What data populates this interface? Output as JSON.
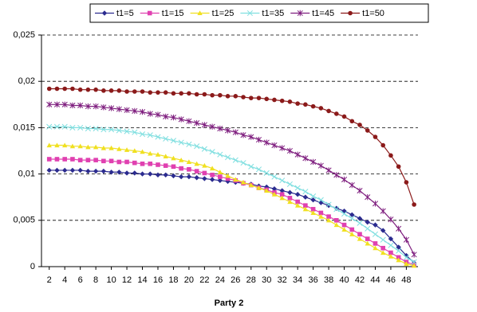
{
  "chart_data": {
    "type": "line",
    "x_label": "Party 2",
    "x": [
      2,
      3,
      4,
      5,
      6,
      7,
      8,
      9,
      10,
      11,
      12,
      13,
      14,
      15,
      16,
      17,
      18,
      19,
      20,
      21,
      22,
      23,
      24,
      25,
      26,
      27,
      28,
      29,
      30,
      31,
      32,
      33,
      34,
      35,
      36,
      37,
      38,
      39,
      40,
      41,
      42,
      43,
      44,
      45,
      46,
      47,
      48,
      49
    ],
    "xlim": [
      1,
      49.5
    ],
    "xticks": [
      2,
      4,
      6,
      8,
      10,
      12,
      14,
      16,
      18,
      20,
      22,
      24,
      26,
      28,
      30,
      32,
      34,
      36,
      38,
      40,
      42,
      44,
      46,
      48
    ],
    "ylim": [
      0,
      0.025
    ],
    "yticks": [
      0,
      {
        "value": 0.005,
        "label": "0,005"
      },
      {
        "value": 0.01,
        "label": "0,01"
      },
      {
        "value": 0.015,
        "label": "0,015"
      },
      {
        "value": 0.02,
        "label": "0,02"
      },
      {
        "value": 0.025,
        "label": "0,025"
      }
    ],
    "grid": true,
    "legend": "top",
    "series": [
      {
        "name": "t1=5",
        "color": "#2b2b8f",
        "marker": "diamond",
        "values": [
          0.0104,
          0.0104,
          0.0104,
          0.0104,
          0.0104,
          0.0103,
          0.0103,
          0.0103,
          0.0102,
          0.0102,
          0.0101,
          0.0101,
          0.01,
          0.01,
          0.0099,
          0.0099,
          0.0098,
          0.0097,
          0.0097,
          0.0096,
          0.0095,
          0.0094,
          0.0093,
          0.0092,
          0.0091,
          0.009,
          0.0089,
          0.0087,
          0.0086,
          0.0084,
          0.0082,
          0.008,
          0.0078,
          0.0075,
          0.0072,
          0.0069,
          0.0066,
          0.0063,
          0.006,
          0.0056,
          0.0052,
          0.0048,
          0.0045,
          0.0039,
          0.003,
          0.0021,
          0.0012,
          0.0004
        ]
      },
      {
        "name": "t1=15",
        "color": "#e040b0",
        "marker": "square",
        "values": [
          0.0116,
          0.0116,
          0.0116,
          0.0116,
          0.0115,
          0.0115,
          0.0115,
          0.0114,
          0.0114,
          0.0113,
          0.0113,
          0.0112,
          0.0111,
          0.0111,
          0.011,
          0.0109,
          0.0108,
          0.0106,
          0.0105,
          0.0103,
          0.0101,
          0.0099,
          0.0097,
          0.0095,
          0.0093,
          0.009,
          0.0088,
          0.0085,
          0.0083,
          0.008,
          0.0078,
          0.0074,
          0.007,
          0.0066,
          0.0062,
          0.0058,
          0.0054,
          0.005,
          0.0045,
          0.004,
          0.0035,
          0.003,
          0.0025,
          0.002,
          0.0015,
          0.001,
          0.0005,
          0.0002
        ]
      },
      {
        "name": "t1=25",
        "color": "#f0e020",
        "marker": "triangle",
        "values": [
          0.0131,
          0.0131,
          0.0131,
          0.013,
          0.013,
          0.0129,
          0.0129,
          0.0128,
          0.0128,
          0.0127,
          0.0126,
          0.0125,
          0.0124,
          0.0122,
          0.0121,
          0.0119,
          0.0117,
          0.0115,
          0.0113,
          0.0111,
          0.0109,
          0.0106,
          0.0102,
          0.0098,
          0.0094,
          0.0091,
          0.0088,
          0.0085,
          0.0082,
          0.0078,
          0.0074,
          0.007,
          0.0066,
          0.0062,
          0.0058,
          0.0054,
          0.005,
          0.0045,
          0.004,
          0.0035,
          0.003,
          0.0025,
          0.002,
          0.0015,
          0.0011,
          0.0007,
          0.0003,
          0.0001
        ]
      },
      {
        "name": "t1=35",
        "color": "#80dfe0",
        "marker": "x",
        "values": [
          0.0151,
          0.0151,
          0.0151,
          0.015,
          0.015,
          0.0149,
          0.0149,
          0.0148,
          0.0148,
          0.0147,
          0.0146,
          0.0145,
          0.0143,
          0.0142,
          0.014,
          0.0138,
          0.0136,
          0.0134,
          0.0132,
          0.013,
          0.0127,
          0.0124,
          0.0121,
          0.0118,
          0.0115,
          0.0112,
          0.0108,
          0.0105,
          0.0101,
          0.0097,
          0.0093,
          0.0089,
          0.0085,
          0.0081,
          0.0076,
          0.0072,
          0.0067,
          0.0062,
          0.0057,
          0.0052,
          0.0047,
          0.0041,
          0.0035,
          0.0029,
          0.0023,
          0.0017,
          0.001,
          0.0005
        ]
      },
      {
        "name": "t1=45",
        "color": "#7f1f7f",
        "marker": "star",
        "values": [
          0.0175,
          0.0175,
          0.0175,
          0.0174,
          0.0174,
          0.0173,
          0.0173,
          0.0172,
          0.0171,
          0.017,
          0.0169,
          0.0168,
          0.0167,
          0.0165,
          0.0164,
          0.0162,
          0.0161,
          0.0159,
          0.0157,
          0.0155,
          0.0153,
          0.0151,
          0.0149,
          0.0147,
          0.0145,
          0.0142,
          0.014,
          0.0137,
          0.0134,
          0.0131,
          0.0128,
          0.0125,
          0.0121,
          0.0117,
          0.0113,
          0.0109,
          0.0104,
          0.0099,
          0.0094,
          0.0088,
          0.0082,
          0.0075,
          0.0068,
          0.006,
          0.0051,
          0.0041,
          0.0029,
          0.0013
        ]
      },
      {
        "name": "t1=50",
        "color": "#8b1a1a",
        "marker": "circle",
        "values": [
          0.0192,
          0.0192,
          0.0192,
          0.0192,
          0.0191,
          0.0191,
          0.0191,
          0.019,
          0.019,
          0.019,
          0.0189,
          0.0189,
          0.0189,
          0.0188,
          0.0188,
          0.0188,
          0.0187,
          0.0187,
          0.0187,
          0.0186,
          0.0186,
          0.0185,
          0.0185,
          0.0184,
          0.0184,
          0.0183,
          0.0182,
          0.0182,
          0.0181,
          0.018,
          0.0179,
          0.0178,
          0.0176,
          0.0175,
          0.0173,
          0.0171,
          0.0168,
          0.0165,
          0.0162,
          0.0157,
          0.0153,
          0.0147,
          0.014,
          0.0131,
          0.012,
          0.0108,
          0.0091,
          0.0067
        ]
      }
    ]
  }
}
